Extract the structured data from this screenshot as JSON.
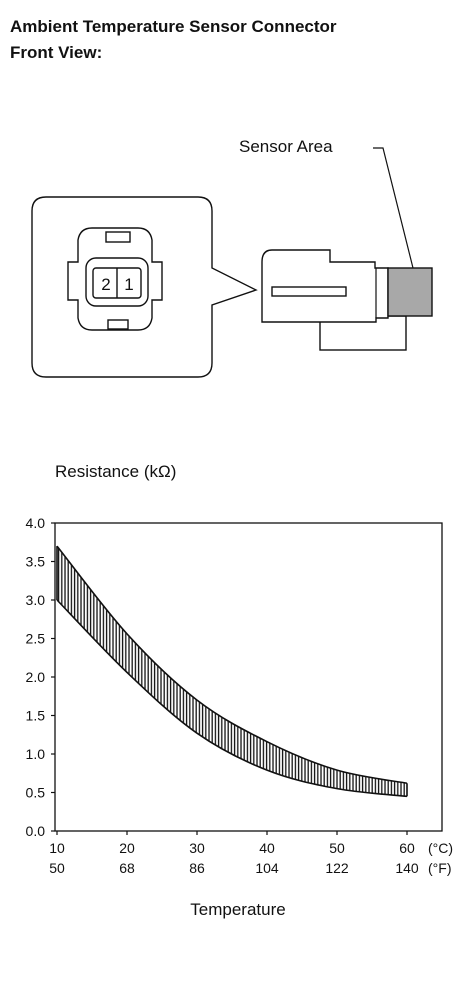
{
  "header": {
    "title_line1": "Ambient Temperature Sensor Connector",
    "title_line2": "Front View:"
  },
  "connector": {
    "sensor_label": "Sensor Area",
    "pins": [
      "2",
      "1"
    ]
  },
  "chart_data": {
    "type": "band",
    "y_label": "Resistance (kΩ)",
    "x_label": "Temperature",
    "x_unit": "(°C)",
    "x2_unit": "(°F)",
    "x": [
      10,
      20,
      30,
      40,
      50,
      60
    ],
    "series": [
      {
        "values": [
          3.7,
          2.56,
          1.7,
          1.16,
          0.79,
          0.62
        ]
      },
      {
        "values": [
          3.0,
          2.06,
          1.27,
          0.79,
          0.55,
          0.45
        ]
      }
    ],
    "color": "#111111",
    "xlim": [
      10,
      65
    ],
    "xticks": [
      10,
      20,
      30,
      40,
      50,
      60
    ],
    "x2lim": [
      50,
      149
    ],
    "x2ticks": [
      50,
      68,
      86,
      104,
      122,
      140
    ],
    "ylim": [
      0,
      4
    ],
    "yticks": [
      {
        "value": 0,
        "label": "0.0"
      },
      0.5,
      {
        "value": 1,
        "label": "1.0"
      },
      1.5,
      {
        "value": 2,
        "label": "2.0"
      },
      2.5,
      {
        "value": 3,
        "label": "3.0"
      },
      3.5,
      {
        "value": 4,
        "label": "4.0"
      }
    ]
  }
}
